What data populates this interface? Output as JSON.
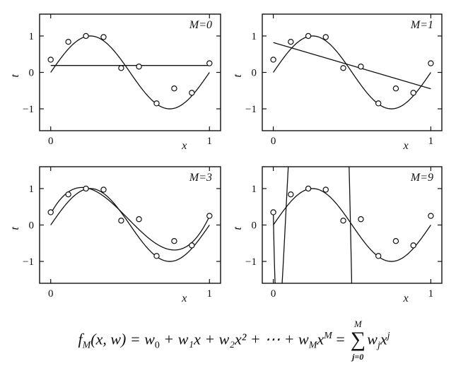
{
  "chart_data": [
    {
      "type": "line",
      "annotation": "M=0",
      "xlabel": "x",
      "ylabel": "t",
      "xlim": [
        -0.07,
        1.07
      ],
      "ylim": [
        -1.6,
        1.6
      ],
      "xticks": [
        "0",
        "1"
      ],
      "yticks": [
        "−1",
        "0",
        "1"
      ],
      "points": {
        "x": [
          0.0,
          0.111,
          0.222,
          0.333,
          0.444,
          0.556,
          0.667,
          0.778,
          0.889,
          1.0
        ],
        "y": [
          0.35,
          0.84,
          1.0,
          0.97,
          0.12,
          0.16,
          -0.85,
          -0.44,
          -0.56,
          0.25
        ]
      },
      "curves": [
        "sin(2πx)",
        "polynomial fit M=0"
      ]
    },
    {
      "type": "line",
      "annotation": "M=1",
      "xlabel": "x",
      "ylabel": "t",
      "xlim": [
        -0.07,
        1.07
      ],
      "ylim": [
        -1.6,
        1.6
      ],
      "xticks": [
        "0",
        "1"
      ],
      "yticks": [
        "−1",
        "0",
        "1"
      ],
      "points": {
        "x": [
          0.0,
          0.111,
          0.222,
          0.333,
          0.444,
          0.556,
          0.667,
          0.778,
          0.889,
          1.0
        ],
        "y": [
          0.35,
          0.84,
          1.0,
          0.97,
          0.12,
          0.16,
          -0.85,
          -0.44,
          -0.56,
          0.25
        ]
      },
      "curves": [
        "sin(2πx)",
        "polynomial fit M=1"
      ]
    },
    {
      "type": "line",
      "annotation": "M=3",
      "xlabel": "x",
      "ylabel": "t",
      "xlim": [
        -0.07,
        1.07
      ],
      "ylim": [
        -1.6,
        1.6
      ],
      "xticks": [
        "0",
        "1"
      ],
      "yticks": [
        "−1",
        "0",
        "1"
      ],
      "points": {
        "x": [
          0.0,
          0.111,
          0.222,
          0.333,
          0.444,
          0.556,
          0.667,
          0.778,
          0.889,
          1.0
        ],
        "y": [
          0.35,
          0.84,
          1.0,
          0.97,
          0.12,
          0.16,
          -0.85,
          -0.44,
          -0.56,
          0.25
        ]
      },
      "curves": [
        "sin(2πx)",
        "polynomial fit M=3"
      ]
    },
    {
      "type": "line",
      "annotation": "M=9",
      "xlabel": "x",
      "ylabel": "t",
      "xlim": [
        -0.07,
        1.07
      ],
      "ylim": [
        -1.6,
        1.6
      ],
      "xticks": [
        "0",
        "1"
      ],
      "yticks": [
        "−1",
        "0",
        "1"
      ],
      "points": {
        "x": [
          0.0,
          0.111,
          0.222,
          0.333,
          0.444,
          0.556,
          0.667,
          0.778,
          0.889,
          1.0
        ],
        "y": [
          0.35,
          0.84,
          1.0,
          0.97,
          0.12,
          0.16,
          -0.85,
          -0.44,
          -0.56,
          0.25
        ]
      },
      "curves": [
        "sin(2πx)",
        "polynomial fit M=9"
      ]
    }
  ],
  "formula": {
    "lhs": "f",
    "lhs_sub": "M",
    "args": "(x, w) = w",
    "body": "+ w₁x + w₂x² + ⋯ + w",
    "sum_upper": "M",
    "sum_lower": "j=0",
    "sum_term": "w",
    "sum_term_sub": "j",
    "sum_var": "x",
    "sum_var_sup": "j"
  }
}
